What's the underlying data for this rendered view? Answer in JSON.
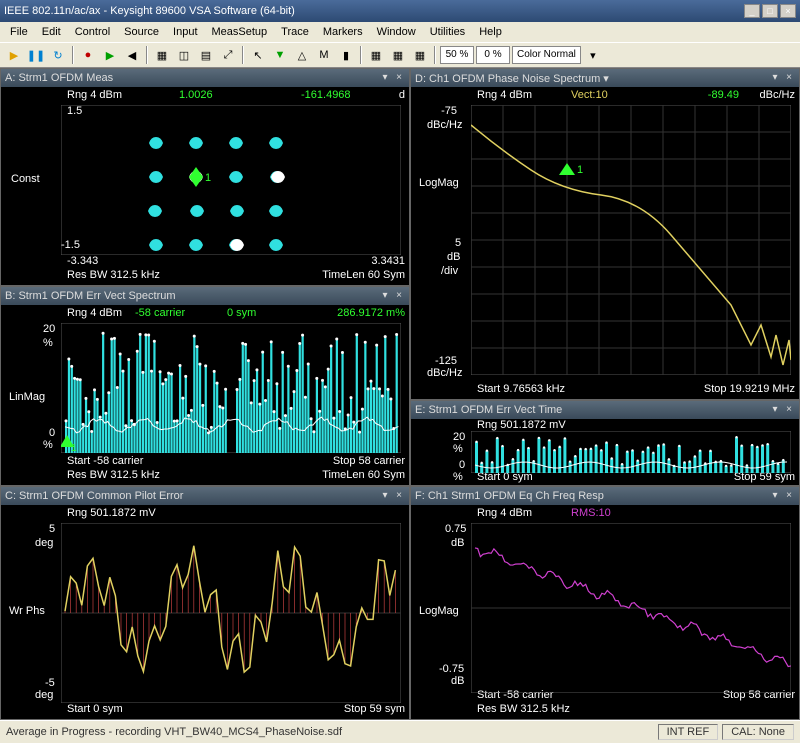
{
  "title": "IEEE 802.11n/ac/ax - Keysight 89600 VSA Software (64-bit)",
  "menu": [
    "File",
    "Edit",
    "Control",
    "Source",
    "Input",
    "MeasSetup",
    "Trace",
    "Markers",
    "Window",
    "Utilities",
    "Help"
  ],
  "toolbar_pct1": "50 %",
  "toolbar_pct2": "0 %",
  "color_mode": "Color Normal",
  "status_left": "Average in Progress - recording VHT_BW40_MCS4_PhaseNoise.sdf",
  "status_intref": "INT REF",
  "status_cal": "CAL: None",
  "panels": {
    "a": {
      "title": "A: Strm1 OFDM Meas",
      "rng": "Rng 4 dBm",
      "v1": "1.0026",
      "v2": "-161.4968",
      "unit": "d",
      "ylbl": "Const",
      "ytop": "1.5",
      "ybot": "-1.5",
      "xlo": "-3.343",
      "xhi": "3.3431",
      "b1": "Res BW 312.5 kHz",
      "b2": "TimeLen 60  Sym",
      "points_cyan": [
        [
          95,
          38
        ],
        [
          135,
          38
        ],
        [
          175,
          38
        ],
        [
          215,
          38
        ],
        [
          95,
          72
        ],
        [
          175,
          72
        ],
        [
          216,
          72
        ],
        [
          94,
          106
        ],
        [
          136,
          106
        ],
        [
          176,
          106
        ],
        [
          215,
          106
        ],
        [
          95,
          140
        ],
        [
          135,
          140
        ],
        [
          175,
          140
        ],
        [
          215,
          140
        ]
      ],
      "points_white": [
        [
          135,
          72
        ],
        [
          176,
          140
        ],
        [
          217,
          72
        ]
      ],
      "marker": [
        135,
        72
      ],
      "marker_lbl": "1"
    },
    "b": {
      "title": "B: Strm1 OFDM Err Vect Spectrum",
      "rng": "Rng 4 dBm",
      "v1": "-58 carrier",
      "v2": "0 sym",
      "v3": "286.9172 m%",
      "ylbl": "LinMag",
      "ytop": "20",
      "yunit": "%",
      "ybot": "0",
      "ybotu": "%",
      "b1": "Start -58  carrier",
      "b2": "Stop 58  carrier",
      "b3": "Res BW 312.5 kHz",
      "b4": "TimeLen 60  Sym",
      "marker_lbl": "1"
    },
    "c": {
      "title": "C: Strm1 OFDM Common Pilot Error",
      "rng": "Rng 501.1872 mV",
      "ylbl": "Wr Phs",
      "ytop": "5",
      "yunit": "deg",
      "ybot": "-5",
      "ybotu": "deg",
      "b1": "Start 0  sym",
      "b2": "Stop 59  sym"
    },
    "d": {
      "title": "D: Ch1 OFDM Phase Noise Spectrum",
      "rng": "Rng 4 dBm",
      "vect": "Vect:10",
      "v1": "-89.49",
      "unit": "dBc/Hz",
      "ytop": "-75",
      "ytopu": "dBc/Hz",
      "ylbl": "LogMag",
      "ymid1": "5",
      "ymid1u": "dB",
      "ymid2": "/div",
      "ybot": "-125",
      "ybotu": "dBc/Hz",
      "b1": "Start 9.76563 kHz",
      "b2": "Stop 19.9219 MHz",
      "marker_lbl": "1"
    },
    "e": {
      "title": "E: Strm1 OFDM Err Vect Time",
      "rng": "Rng 501.1872 mV",
      "ytop": "20",
      "yunit": "%",
      "ybot": "0",
      "ybotu": "%",
      "b1": "Start 0  sym",
      "b2": "Stop 59  sym"
    },
    "f": {
      "title": "F: Ch1 Strm1 OFDM Eq Ch Freq Resp",
      "rng": "Rng 4 dBm",
      "rms": "RMS:10",
      "ytop": "0.75",
      "ytopu": "dB",
      "ylbl": "LogMag",
      "ybot": "-0.75",
      "ybotu": "dB",
      "b1": "Start -58  carrier",
      "b2": "Stop 58  carrier",
      "b3": "Res BW 312.5 kHz"
    }
  },
  "colors": {
    "cyan": "#30e0e0",
    "green": "#30ff30",
    "yellow": "#e0d060",
    "magenta": "#d040d0",
    "red": "#c04040",
    "white": "#ffffff"
  }
}
